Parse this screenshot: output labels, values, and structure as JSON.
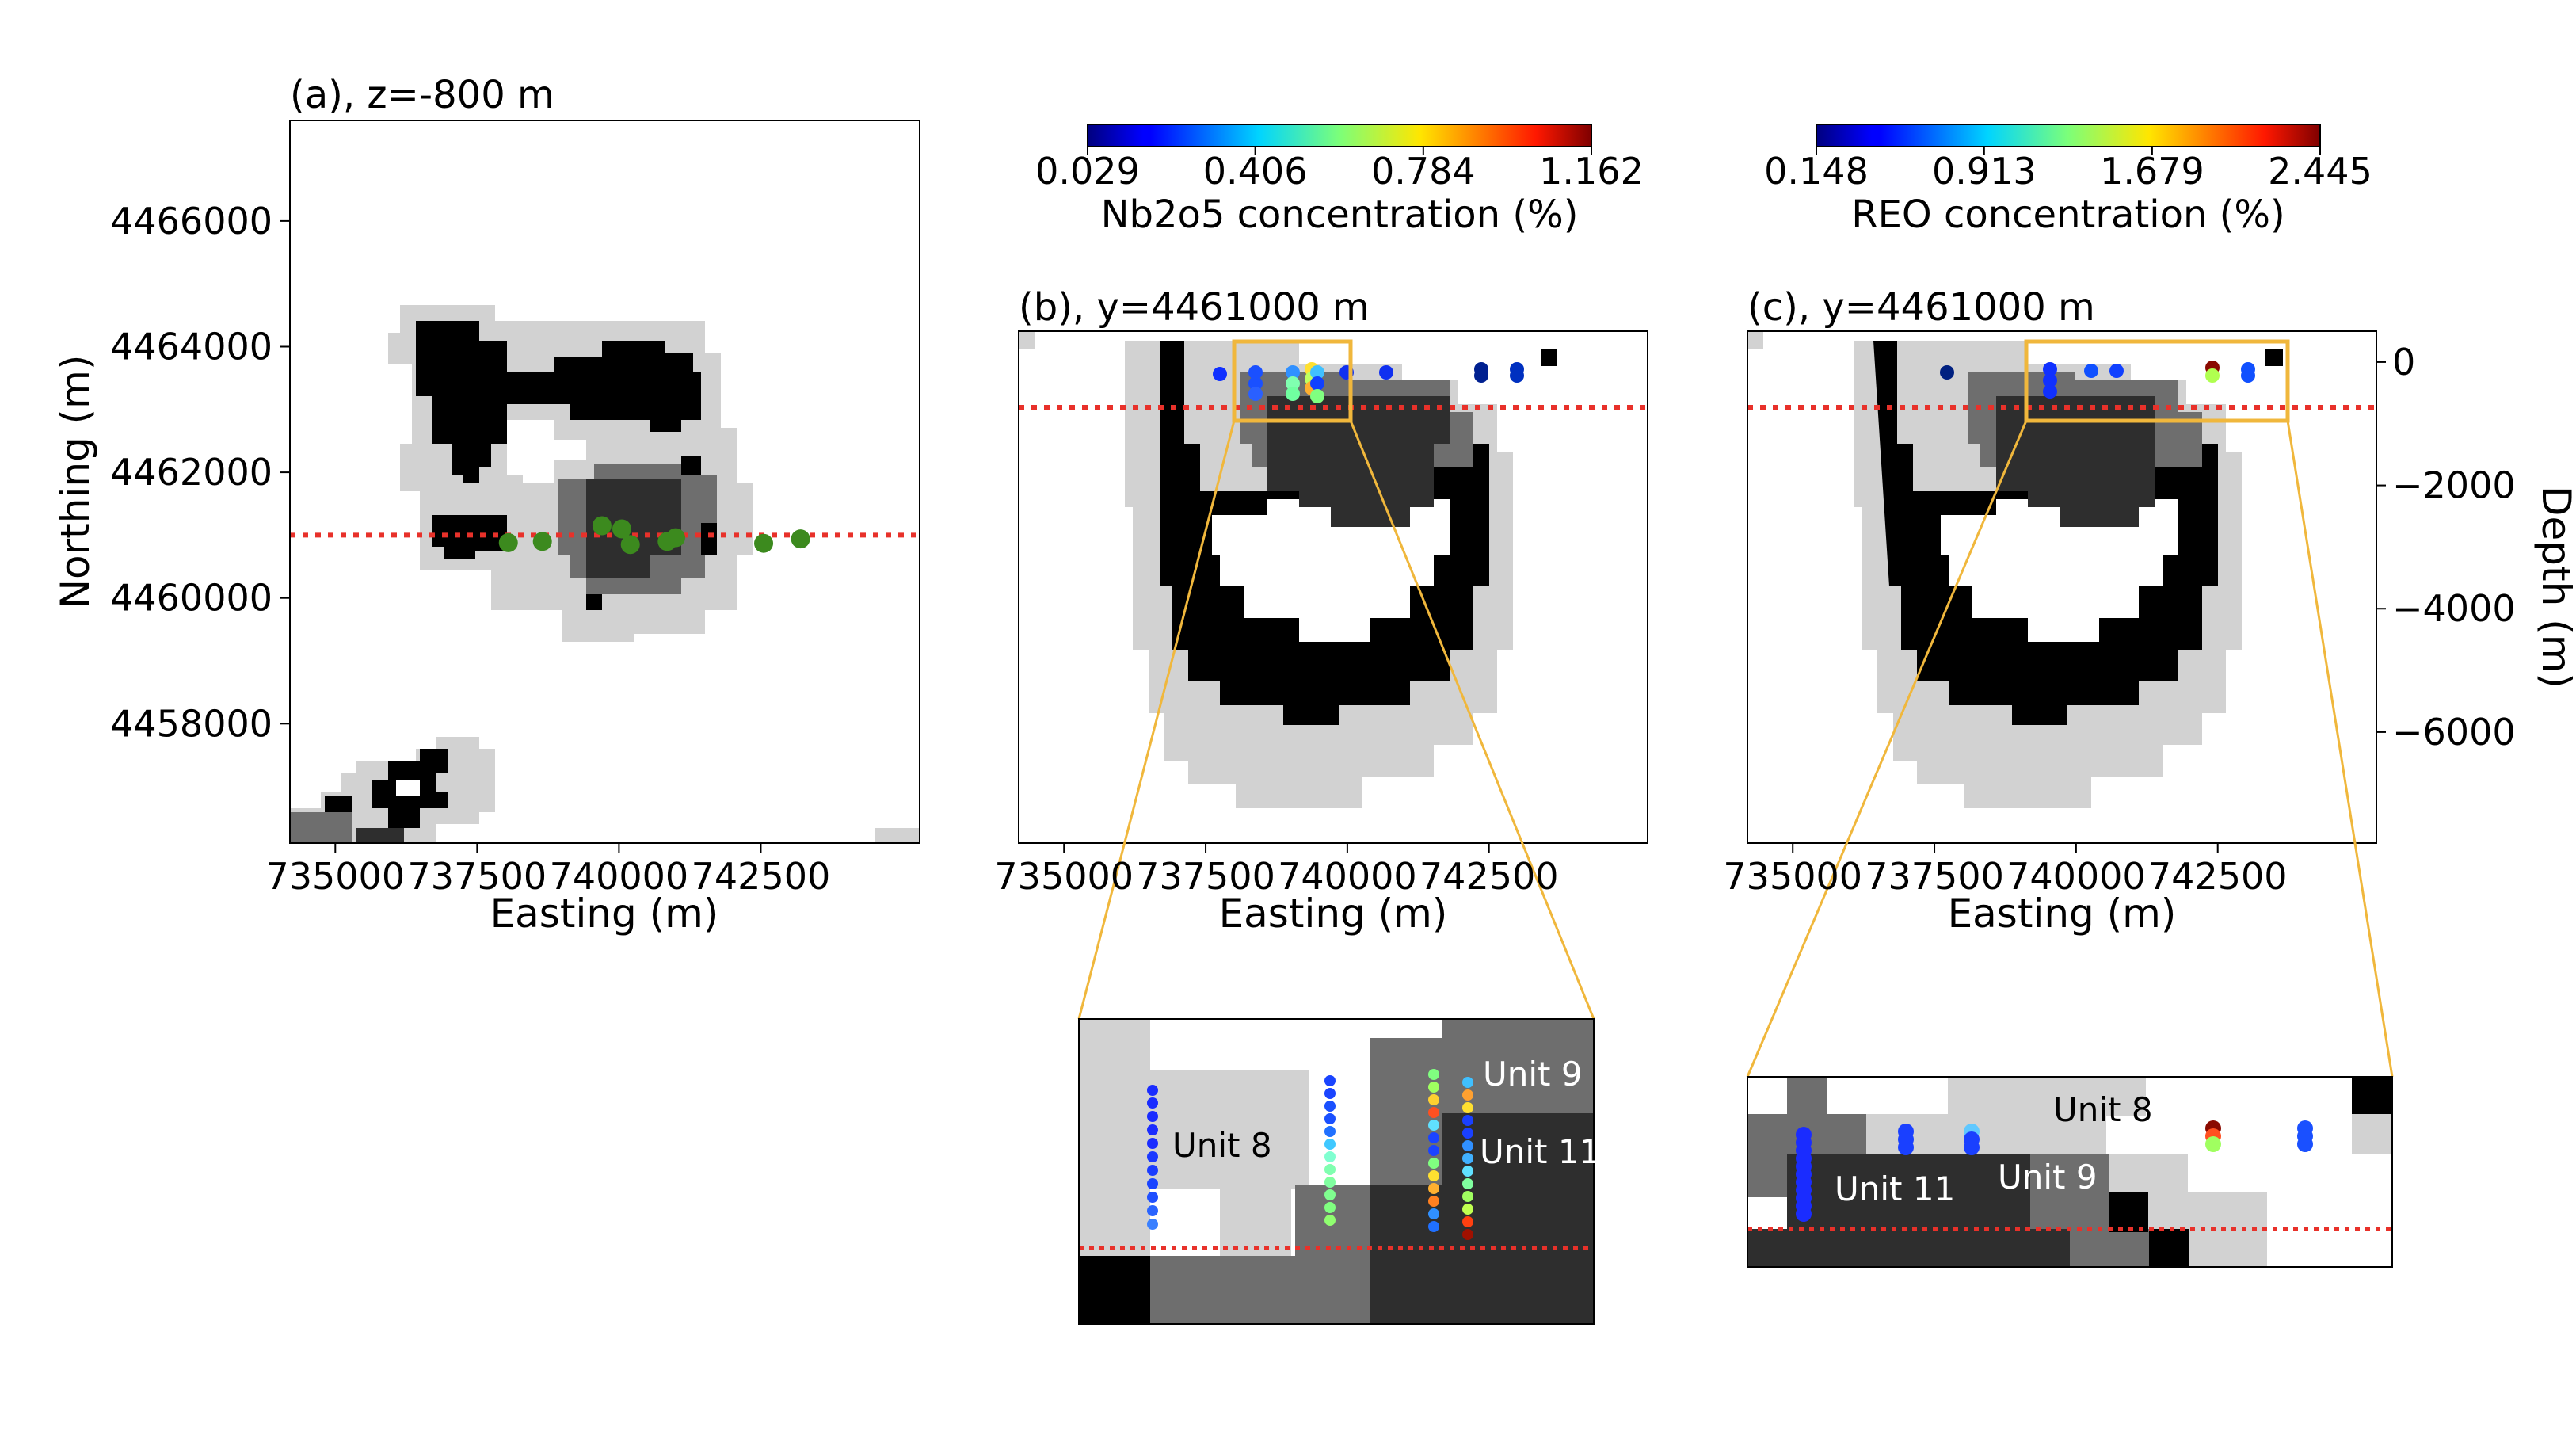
{
  "chart_data": [
    {
      "type": "heatmap",
      "panel": "a",
      "title": "(a), z=-800 m",
      "xlabel": "Easting (m)",
      "ylabel": "Northing (m)",
      "xlim": [
        734200,
        745300
      ],
      "ylim": [
        4456100,
        4467600
      ],
      "xticks": [
        "735000",
        "737500",
        "740000",
        "742500"
      ],
      "xtick_values": [
        735000,
        737500,
        740000,
        742500
      ],
      "yticks": [
        "4466000",
        "4464000",
        "4462000",
        "4460000",
        "4458000"
      ],
      "ytick_values": [
        4466000,
        4464000,
        4462000,
        4460000,
        4458000
      ],
      "section_line_y": 4461000,
      "section_line_color": "#e8312a",
      "drillholes": {
        "color": "#3c8a1e",
        "x": [
          738050,
          738650,
          739700,
          740050,
          740200,
          740850,
          741000,
          742550,
          743200
        ],
        "y": [
          4460880,
          4460900,
          4461150,
          4461100,
          4460850,
          4460900,
          4460960,
          4460870,
          4460940
        ]
      }
    },
    {
      "type": "heatmap",
      "panel": "b",
      "title": "(b), y=4461000 m",
      "xlabel": "Easting (m)",
      "xlim": [
        734200,
        745300
      ],
      "ylim": [
        -7800,
        500
      ],
      "xticks": [
        "735000",
        "737500",
        "740000",
        "742500"
      ],
      "xtick_values": [
        735000,
        737500,
        740000,
        742500
      ],
      "section_line_depth": -800,
      "colorbar": {
        "label": "Nb2o5 concentration (%)",
        "ticks": [
          "0.029",
          "0.406",
          "0.784",
          "1.162"
        ],
        "min": 0.029,
        "max": 1.162
      },
      "inset_labels": [
        "Unit 8",
        "Unit 9",
        "Unit 11"
      ]
    },
    {
      "type": "heatmap",
      "panel": "c",
      "title": "(c), y=4461000 m",
      "xlabel": "Easting (m)",
      "ylabel": "Depth (m)",
      "xlim": [
        734200,
        745300
      ],
      "ylim": [
        -7800,
        500
      ],
      "xticks": [
        "735000",
        "737500",
        "740000",
        "742500"
      ],
      "xtick_values": [
        735000,
        737500,
        740000,
        742500
      ],
      "yticks": [
        "0",
        "−2000",
        "−4000",
        "−6000"
      ],
      "ytick_values": [
        0,
        -2000,
        -4000,
        -6000
      ],
      "section_line_depth": -800,
      "colorbar": {
        "label": "REO concentration (%)",
        "ticks": [
          "0.148",
          "0.913",
          "1.679",
          "2.445"
        ],
        "min": 0.148,
        "max": 2.445
      },
      "inset_labels": [
        "Unit 8",
        "Unit 11",
        "Unit 9"
      ]
    }
  ],
  "colors": {
    "unit_black": "#000000",
    "unit_dark": "#2e2e2e",
    "unit_mid": "#6e6e6e",
    "unit_light": "#d2d2d2",
    "zoom_box": "#f0b73c",
    "section_line": "#e8312a"
  }
}
